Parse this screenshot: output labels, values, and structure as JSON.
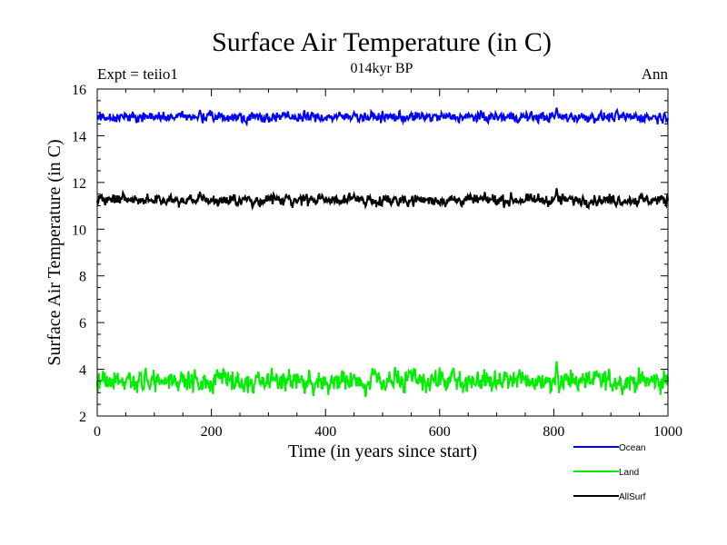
{
  "chart_data": {
    "type": "line",
    "title": "Surface Air Temperature (in C)",
    "subtitle": "014kyr BP",
    "left_label": "Expt = teiio1",
    "right_label": "Ann",
    "xlabel": "Time (in years since start)",
    "ylabel": "Surface Air Temperature (in C)",
    "xlim": [
      0,
      1000
    ],
    "ylim": [
      2,
      16
    ],
    "x_ticks": [
      "0",
      "200",
      "400",
      "600",
      "800",
      "1000"
    ],
    "y_ticks": [
      "2",
      "4",
      "6",
      "8",
      "10",
      "12",
      "14",
      "16"
    ],
    "grid": false,
    "legend_position": "bottom-right, below plot",
    "series": [
      {
        "name": "Ocean",
        "color": "#0000ff",
        "mean": 14.8,
        "noise": 0.1,
        "peaks": [
          [
            180,
            15.1
          ],
          [
            450,
            15.0
          ],
          [
            805,
            15.2
          ]
        ]
      },
      {
        "name": "Land",
        "color": "#00ee00",
        "mean": 3.5,
        "noise": 0.22,
        "peaks": [
          [
            210,
            4.0
          ],
          [
            450,
            3.8
          ],
          [
            740,
            4.0
          ],
          [
            805,
            4.35
          ],
          [
            920,
            2.9
          ]
        ]
      },
      {
        "name": "AllSurf",
        "color": "#000000",
        "mean": 11.25,
        "noise": 0.11,
        "peaks": [
          [
            180,
            11.6
          ],
          [
            450,
            11.5
          ],
          [
            805,
            11.75
          ],
          [
            610,
            10.95
          ]
        ]
      }
    ]
  }
}
